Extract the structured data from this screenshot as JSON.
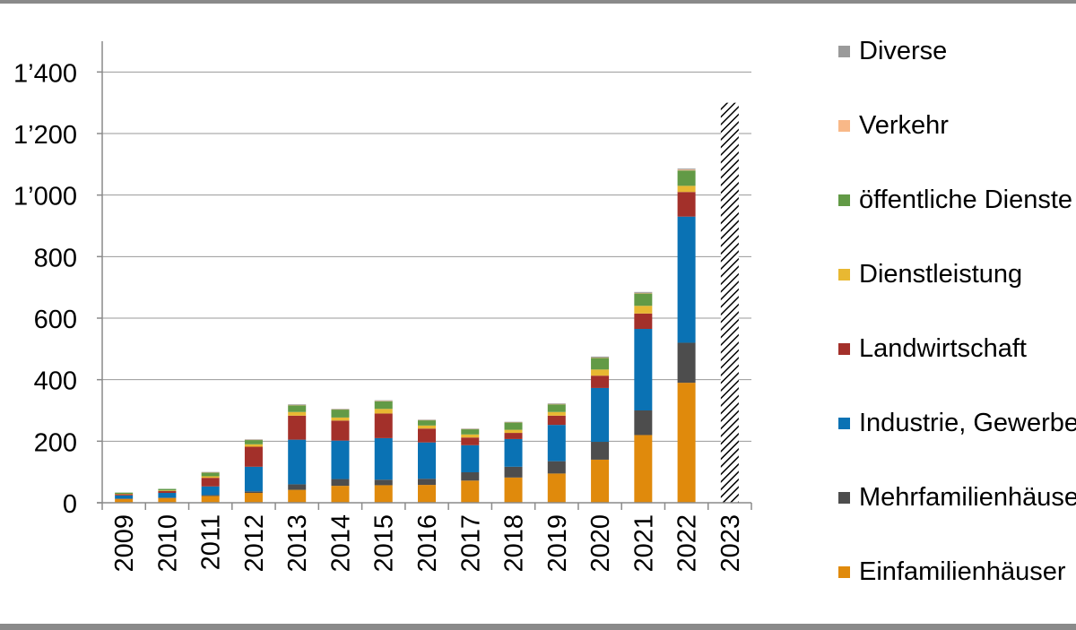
{
  "chart_data": {
    "type": "bar",
    "stacked": true,
    "categories": [
      "2009",
      "2010",
      "2011",
      "2012",
      "2013",
      "2014",
      "2015",
      "2016",
      "2017",
      "2018",
      "2019",
      "2020",
      "2021",
      "2022",
      "2023"
    ],
    "ylim": [
      0,
      1500
    ],
    "yticks": [
      0,
      200,
      400,
      600,
      800,
      1000,
      1200,
      1400
    ],
    "ytick_labels": [
      "0",
      "200",
      "400",
      "600",
      "800",
      "1’000",
      "1’200",
      "1’400"
    ],
    "grid": true,
    "legend_position": "right",
    "series": [
      {
        "name": "Einfamilienhäuser",
        "color": "#e08a0c",
        "values": [
          12,
          15,
          22,
          32,
          42,
          55,
          57,
          58,
          72,
          82,
          95,
          140,
          220,
          390,
          null
        ]
      },
      {
        "name": "Mehrfamilienhäuser",
        "color": "#4d4d4d",
        "values": [
          2,
          2,
          3,
          5,
          18,
          22,
          18,
          20,
          27,
          35,
          40,
          58,
          80,
          130,
          null
        ]
      },
      {
        "name": "Industrie, Gewerbe",
        "color": "#0a72b4",
        "values": [
          10,
          15,
          28,
          80,
          145,
          125,
          135,
          118,
          88,
          90,
          118,
          175,
          265,
          410,
          null
        ]
      },
      {
        "name": "Landwirtschaft",
        "color": "#a3302a",
        "values": [
          4,
          6,
          28,
          65,
          78,
          65,
          80,
          45,
          25,
          20,
          30,
          40,
          50,
          80,
          null
        ]
      },
      {
        "name": "Dienstleistung",
        "color": "#e8b832",
        "values": [
          1,
          2,
          5,
          8,
          12,
          10,
          15,
          10,
          10,
          10,
          12,
          20,
          25,
          20,
          null
        ]
      },
      {
        "name": "öffentliche Dienste",
        "color": "#629a46",
        "values": [
          4,
          5,
          12,
          14,
          22,
          26,
          25,
          17,
          17,
          24,
          25,
          38,
          40,
          50,
          null
        ]
      },
      {
        "name": "Verkehr",
        "color": "#f8b888",
        "values": [
          0,
          0,
          1,
          1,
          1,
          1,
          1,
          1,
          1,
          1,
          1,
          1,
          2,
          3,
          null
        ]
      },
      {
        "name": "Diverse",
        "color": "#9a9a9a",
        "values": [
          0,
          0,
          1,
          1,
          2,
          1,
          2,
          1,
          1,
          1,
          2,
          3,
          3,
          3,
          null
        ]
      }
    ],
    "hatched_category": {
      "category": "2023",
      "value": 1300
    }
  },
  "legend": [
    {
      "label": "Diverse",
      "color": "#9a9a9a"
    },
    {
      "label": "Verkehr",
      "color": "#f8b888"
    },
    {
      "label": "öffentliche Dienste",
      "color": "#629a46"
    },
    {
      "label": "Dienstleistung",
      "color": "#e8b832"
    },
    {
      "label": "Landwirtschaft",
      "color": "#a3302a"
    },
    {
      "label": "Industrie, Gewerbe",
      "color": "#0a72b4"
    },
    {
      "label": "Mehrfamilienhäuser",
      "color": "#4d4d4d"
    },
    {
      "label": "Einfamilienhäuser",
      "color": "#e08a0c"
    }
  ]
}
